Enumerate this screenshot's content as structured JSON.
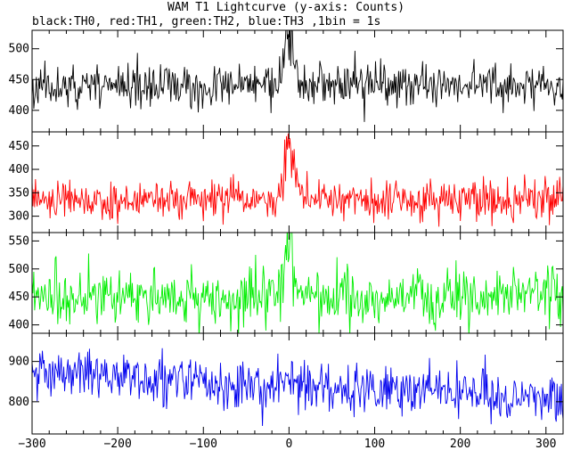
{
  "title": "WAM T1 Lightcurve (y-axis: Counts)",
  "subtitle": "black:TH0, red:TH1, green:TH2, blue:TH3 ,1bin = 1s",
  "chart_data": [
    {
      "type": "line",
      "series": [
        {
          "color": "#000000",
          "baseline": 440,
          "noise": 17,
          "peak": 75,
          "slope": 0,
          "peak_width": 5,
          "seed": 11
        }
      ],
      "x_range": [
        -300,
        320
      ],
      "ylim": [
        365,
        530
      ],
      "yticks": [
        400,
        450,
        500
      ],
      "x_ticks": [
        -300,
        -200,
        -100,
        0,
        100,
        200,
        300
      ],
      "x_tick_labels": [
        "−300",
        "−200",
        "−100",
        "0",
        "100",
        "200",
        "300"
      ]
    },
    {
      "type": "line",
      "series": [
        {
          "color": "#ff0000",
          "baseline": 335,
          "noise": 20,
          "peak": 110,
          "slope": 0,
          "peak_width": 6,
          "seed": 23
        }
      ],
      "x_range": [
        -300,
        320
      ],
      "ylim": [
        265,
        480
      ],
      "yticks": [
        300,
        350,
        400,
        450
      ],
      "x_ticks": [
        -300,
        -200,
        -100,
        0,
        100,
        200,
        300
      ],
      "x_tick_labels": [
        "−300",
        "−200",
        "−100",
        "0",
        "100",
        "200",
        "300"
      ]
    },
    {
      "type": "line",
      "series": [
        {
          "color": "#00ee00",
          "baseline": 450,
          "noise": 25,
          "peak": 90,
          "slope": 0,
          "peak_width": 5,
          "seed": 37
        }
      ],
      "x_range": [
        -300,
        320
      ],
      "ylim": [
        385,
        565
      ],
      "yticks": [
        400,
        450,
        500,
        550
      ],
      "x_ticks": [
        -300,
        -200,
        -100,
        0,
        100,
        200,
        300
      ],
      "x_tick_labels": [
        "−300",
        "−200",
        "−100",
        "0",
        "100",
        "200",
        "300"
      ]
    },
    {
      "type": "line",
      "series": [
        {
          "color": "#0000ee",
          "baseline": 840,
          "noise": 30,
          "peak": 25,
          "slope": -0.09,
          "peak_width": 4,
          "seed": 53
        }
      ],
      "x_range": [
        -300,
        320
      ],
      "ylim": [
        720,
        970
      ],
      "yticks": [
        800,
        900
      ],
      "x_ticks": [
        -300,
        -200,
        -100,
        0,
        100,
        200,
        300
      ],
      "x_tick_labels": [
        "−300",
        "−200",
        "−100",
        "0",
        "100",
        "200",
        "300"
      ]
    }
  ]
}
